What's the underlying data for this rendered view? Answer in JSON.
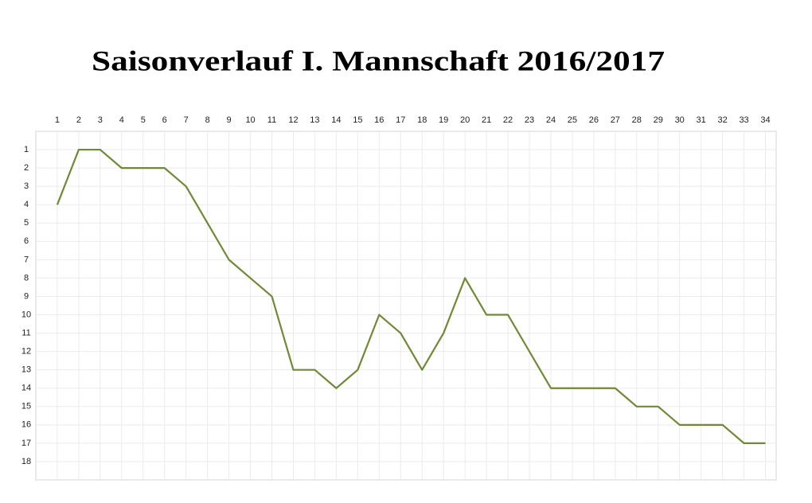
{
  "chart_data": {
    "type": "line",
    "title": "Saisonverlauf I. Mannschaft 2016/2017",
    "x": [
      1,
      2,
      3,
      4,
      5,
      6,
      7,
      8,
      9,
      10,
      11,
      12,
      13,
      14,
      15,
      16,
      17,
      18,
      19,
      20,
      21,
      22,
      23,
      24,
      25,
      26,
      27,
      28,
      29,
      30,
      31,
      32,
      33,
      34
    ],
    "series": [
      {
        "color": "#6f8a35",
        "values": [
          4,
          1,
          1,
          2,
          2,
          2,
          3,
          5,
          7,
          8,
          9,
          13,
          13,
          14,
          13,
          10,
          11,
          13,
          11,
          8,
          10,
          10,
          12,
          14,
          14,
          14,
          14,
          15,
          15,
          16,
          16,
          16,
          17,
          17
        ]
      }
    ],
    "xlim": [
      0,
      34.5
    ],
    "xticks": [
      1,
      2,
      3,
      4,
      5,
      6,
      7,
      8,
      9,
      10,
      11,
      12,
      13,
      14,
      15,
      16,
      17,
      18,
      19,
      20,
      21,
      22,
      23,
      24,
      25,
      26,
      27,
      28,
      29,
      30,
      31,
      32,
      33,
      34
    ],
    "ylim": [
      19,
      0
    ],
    "yticks": [
      1,
      2,
      3,
      4,
      5,
      6,
      7,
      8,
      9,
      10,
      11,
      12,
      13,
      14,
      15,
      16,
      17,
      18
    ],
    "grid": true
  }
}
